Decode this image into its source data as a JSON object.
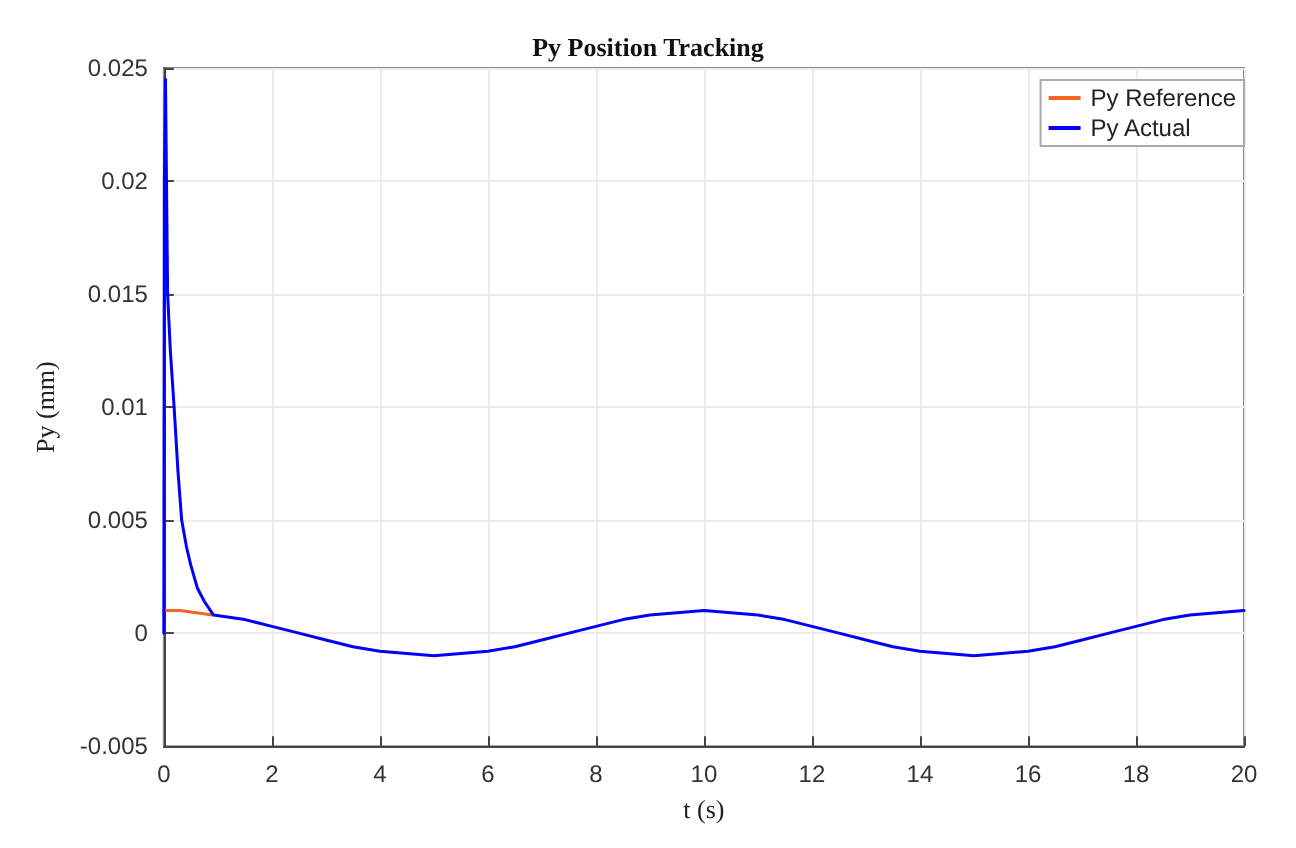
{
  "chart_data": {
    "type": "line",
    "title": "Py Position Tracking",
    "xlabel": "t (s)",
    "ylabel": "Py (mm)",
    "xlim": [
      0,
      20
    ],
    "xticks": [
      0,
      2,
      4,
      6,
      8,
      10,
      12,
      14,
      16,
      18,
      20
    ],
    "ylim": [
      -0.005,
      0.025
    ],
    "yticks": [
      -0.005,
      0,
      0.005,
      0.01,
      0.015,
      0.02,
      0.025
    ],
    "grid": true,
    "legend": "top right",
    "marker": "none",
    "line_style": "solid",
    "series": [
      {
        "name": "Py Reference",
        "color": "#f26522",
        "x": [
          0,
          0.3,
          0.6,
          0.9
        ],
        "values": [
          0.001,
          0.001,
          0.0009,
          0.0008
        ]
      },
      {
        "name": "Py Actual",
        "color": "#0000ff",
        "x": [
          0,
          0.01,
          0.03,
          0.07,
          0.12,
          0.19,
          0.26,
          0.33,
          0.42,
          0.5,
          0.62,
          0.75,
          0.92,
          1.5,
          2,
          2.5,
          3,
          3.5,
          4,
          4.5,
          5,
          5.5,
          6,
          6.5,
          7,
          7.5,
          8,
          8.5,
          9,
          9.5,
          10,
          10.5,
          11,
          11.5,
          12,
          12.5,
          13,
          13.5,
          14,
          14.5,
          15,
          15.5,
          16,
          16.5,
          17,
          17.5,
          18,
          18.5,
          19,
          19.5,
          20
        ],
        "values": [
          0,
          0.02,
          0.0245,
          0.015,
          0.0125,
          0.01,
          0.0072,
          0.005,
          0.0038,
          0.003,
          0.002,
          0.0014,
          0.0008,
          0.0006,
          0.0003,
          0,
          -0.0003,
          -0.0006,
          -0.0008,
          -0.0009,
          -0.001,
          -0.0009,
          -0.0008,
          -0.0006,
          -0.0003,
          0,
          0.0003,
          0.0006,
          0.0008,
          0.0009,
          0.001,
          0.0009,
          0.0008,
          0.0006,
          0.0003,
          0,
          -0.0003,
          -0.0006,
          -0.0008,
          -0.0009,
          -0.001,
          -0.0009,
          -0.0008,
          -0.0006,
          -0.0003,
          0,
          0.0003,
          0.0006,
          0.0008,
          0.0009,
          0.001
        ]
      }
    ]
  }
}
